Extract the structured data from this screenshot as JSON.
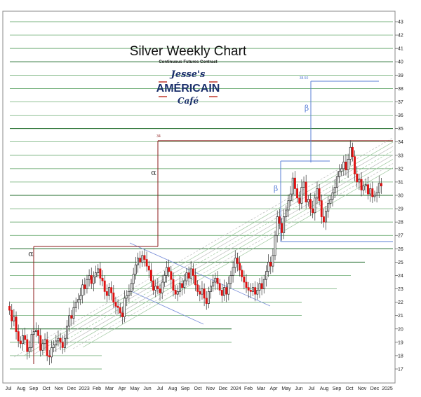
{
  "chart_data": {
    "type": "candlestick",
    "title": "Silver Weekly Chart",
    "subtitle": "Continuous Futures Contract",
    "logo": {
      "top": "Jesse's",
      "middle": "AMÉRICAIN",
      "bottom": "Café"
    },
    "ylim": [
      16.5,
      43.5
    ],
    "y_ticks": [
      17,
      18,
      19,
      20,
      21,
      22,
      23,
      24,
      25,
      26,
      27,
      28,
      29,
      30,
      31,
      32,
      33,
      34,
      35,
      36,
      37,
      38,
      39,
      40,
      41,
      42,
      43
    ],
    "x_ticks": [
      "Jul",
      "Aug",
      "Sep",
      "Oct",
      "Nov",
      "Dec",
      "2023",
      "Feb",
      "Mar",
      "Apr",
      "May",
      "Jun",
      "Jul",
      "Aug",
      "Sep",
      "Oct",
      "Nov",
      "Dec",
      "2024",
      "Feb",
      "Mar",
      "Apr",
      "May",
      "Jun",
      "Jul",
      "Aug",
      "Sep",
      "Oct",
      "Nov",
      "Dec",
      "2025"
    ],
    "closes": [
      21.4,
      20.6,
      20.9,
      19.8,
      19.1,
      18.9,
      19.5,
      19.2,
      18.3,
      18.6,
      19.6,
      19.8,
      19.9,
      19.5,
      18.4,
      18.9,
      19.2,
      18.0,
      17.9,
      18.6,
      18.8,
      19.1,
      19.3,
      19.0,
      18.6,
      19.3,
      20.2,
      21.0,
      20.8,
      21.6,
      22.0,
      22.2,
      22.5,
      23.3,
      23.0,
      23.7,
      24.0,
      23.4,
      23.9,
      24.2,
      24.5,
      23.8,
      23.6,
      22.8,
      22.5,
      23.1,
      22.7,
      22.0,
      21.7,
      21.6,
      21.2,
      20.9,
      22.3,
      22.5,
      22.8,
      23.4,
      24.1,
      24.8,
      25.3,
      25.0,
      25.5,
      25.2,
      24.7,
      24.4,
      23.6,
      22.9,
      23.2,
      23.0,
      22.7,
      23.5,
      24.0,
      24.6,
      24.3,
      23.7,
      22.9,
      22.6,
      22.8,
      23.4,
      23.1,
      23.6,
      24.2,
      23.8,
      24.5,
      24.0,
      23.3,
      22.8,
      22.6,
      23.0,
      22.3,
      21.9,
      22.8,
      23.2,
      23.5,
      23.8,
      23.4,
      22.9,
      22.5,
      23.1,
      22.6,
      23.4,
      24.0,
      24.6,
      25.3,
      24.9,
      24.4,
      23.9,
      23.5,
      23.1,
      22.9,
      22.8,
      23.1,
      22.6,
      22.9,
      23.4,
      23.0,
      23.7,
      24.3,
      25.0,
      24.7,
      25.5,
      27.0,
      28.4,
      27.9,
      27.2,
      28.4,
      28.9,
      29.6,
      30.1,
      31.3,
      30.5,
      29.8,
      29.4,
      30.6,
      31.0,
      29.5,
      29.7,
      29.0,
      28.7,
      29.8,
      30.5,
      29.6,
      28.4,
      28.0,
      28.8,
      29.4,
      29.7,
      30.2,
      30.6,
      31.4,
      31.8,
      32.0,
      32.5,
      31.9,
      32.7,
      33.6,
      32.9,
      31.6,
      31.0,
      31.2,
      30.4,
      30.7,
      30.8,
      30.1,
      30.5,
      29.9,
      30.0,
      30.2,
      30.9,
      30.7
    ]
  }
}
